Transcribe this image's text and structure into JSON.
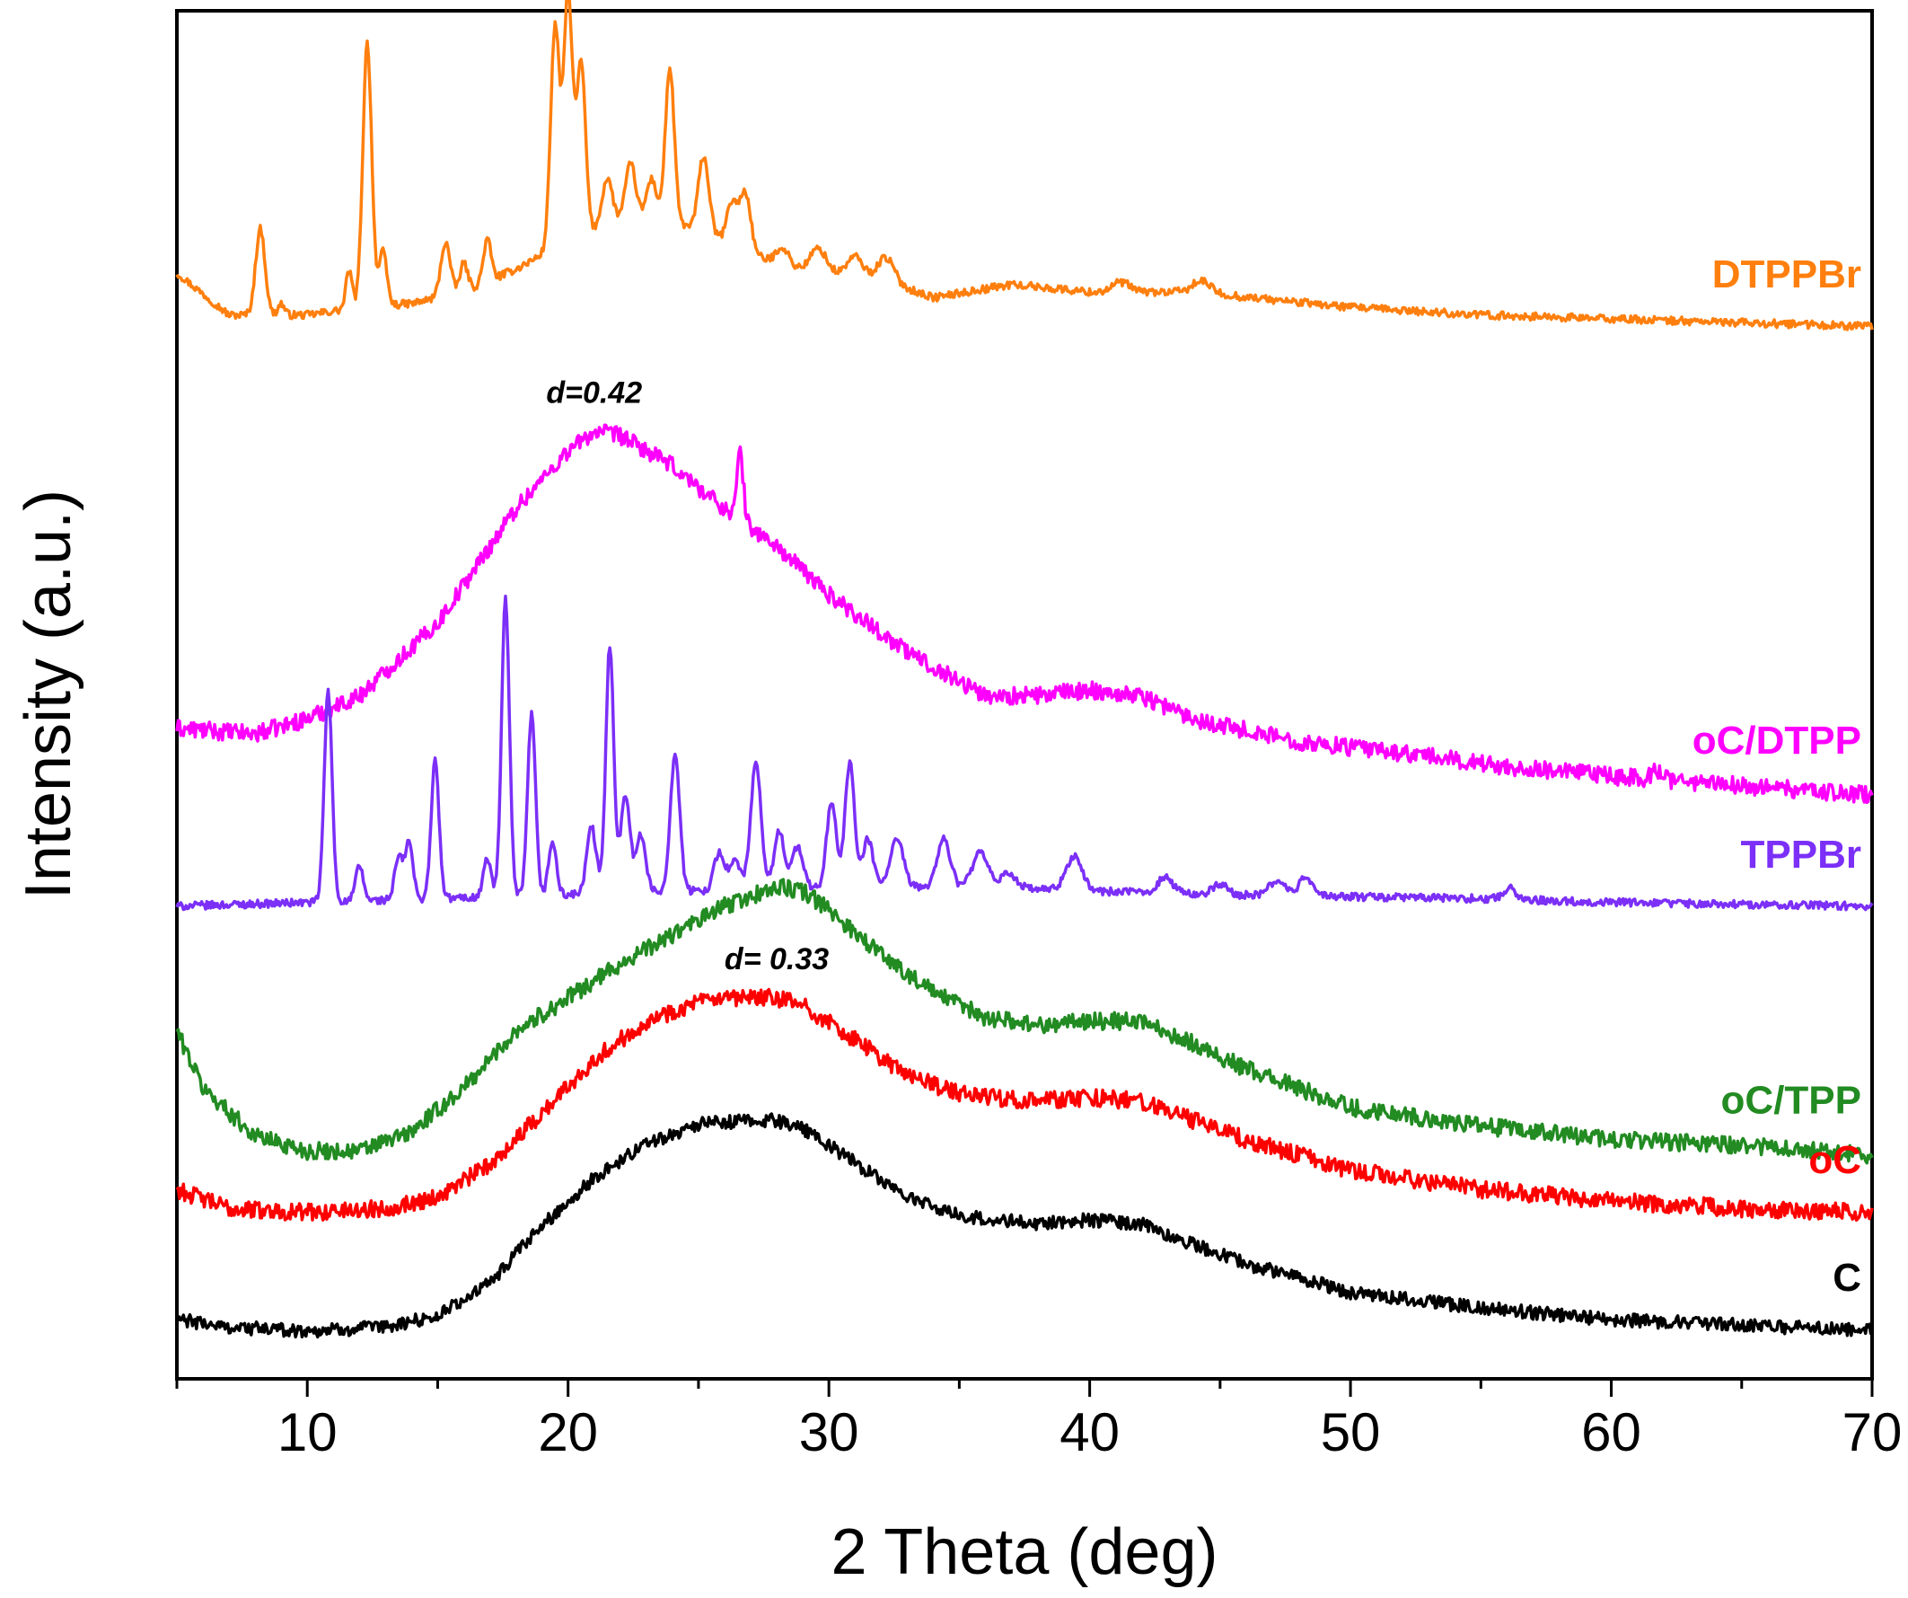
{
  "chart_data": {
    "type": "line",
    "title": "",
    "xlabel": "2 Theta (deg)",
    "ylabel": "Intensity (a.u.)",
    "xlim": [
      5,
      70
    ],
    "xticks": [
      10,
      20,
      30,
      40,
      50,
      60,
      70
    ],
    "xtick_labels": [
      "10",
      "20",
      "30",
      "40",
      "50",
      "60",
      "70"
    ],
    "yticks_shown": false,
    "grid": false,
    "legend": "inline labels at right end of each curve",
    "annotations": [
      {
        "text": "d=0.42",
        "x": 21.0,
        "series": "oC/DTPP"
      },
      {
        "text": "d= 0.33",
        "x": 28.0,
        "series": "oC"
      }
    ],
    "series": [
      {
        "name": "DTPPBr",
        "color": "#ff7f0e",
        "offset": 5.25,
        "noise": 0.02,
        "baseline": [
          [
            5,
            0.28
          ],
          [
            7,
            0.06
          ],
          [
            10,
            0.06
          ],
          [
            12,
            0.1
          ],
          [
            14,
            0.12
          ],
          [
            16,
            0.18
          ],
          [
            18,
            0.3
          ],
          [
            20,
            0.45
          ],
          [
            22,
            0.55
          ],
          [
            24,
            0.55
          ],
          [
            26,
            0.45
          ],
          [
            28,
            0.32
          ],
          [
            30,
            0.28
          ],
          [
            32,
            0.25
          ],
          [
            34,
            0.15
          ],
          [
            37,
            0.22
          ],
          [
            40,
            0.18
          ],
          [
            44,
            0.18
          ],
          [
            50,
            0.1
          ],
          [
            55,
            0.06
          ],
          [
            60,
            0.04
          ],
          [
            70,
            0.0
          ]
        ],
        "peaks": [
          [
            8.2,
            0.45,
            0.18
          ],
          [
            9.0,
            0.06,
            0.12
          ],
          [
            11.6,
            0.2,
            0.12
          ],
          [
            12.3,
            1.38,
            0.17
          ],
          [
            12.9,
            0.28,
            0.15
          ],
          [
            15.3,
            0.28,
            0.18
          ],
          [
            16.0,
            0.15,
            0.15
          ],
          [
            16.9,
            0.22,
            0.15
          ],
          [
            19.5,
            1.15,
            0.17
          ],
          [
            20.0,
            1.28,
            0.17
          ],
          [
            20.5,
            0.9,
            0.17
          ],
          [
            21.5,
            0.25,
            0.2
          ],
          [
            22.4,
            0.3,
            0.2
          ],
          [
            23.2,
            0.22,
            0.2
          ],
          [
            23.9,
            0.8,
            0.17
          ],
          [
            25.2,
            0.4,
            0.2
          ],
          [
            26.3,
            0.22,
            0.2
          ],
          [
            26.8,
            0.3,
            0.2
          ],
          [
            28.2,
            0.1,
            0.25
          ],
          [
            29.6,
            0.12,
            0.3
          ],
          [
            31.0,
            0.1,
            0.3
          ],
          [
            32.2,
            0.12,
            0.3
          ],
          [
            41.2,
            0.05,
            0.35
          ],
          [
            44.3,
            0.06,
            0.35
          ]
        ]
      },
      {
        "name": "oC/DTPP",
        "color": "#ff00ff",
        "offset": 2.9,
        "noise": 0.045,
        "baseline": [
          [
            5,
            0.25
          ],
          [
            8,
            0.22
          ],
          [
            10,
            0.3
          ],
          [
            12,
            0.42
          ],
          [
            15,
            0.8
          ],
          [
            18,
            1.4
          ],
          [
            20,
            1.7
          ],
          [
            21,
            1.8
          ],
          [
            22,
            1.78
          ],
          [
            24,
            1.62
          ],
          [
            26,
            1.4
          ],
          [
            28,
            1.2
          ],
          [
            30,
            0.95
          ],
          [
            33,
            0.65
          ],
          [
            36,
            0.42
          ],
          [
            38,
            0.42
          ],
          [
            40,
            0.45
          ],
          [
            42,
            0.42
          ],
          [
            44,
            0.3
          ],
          [
            48,
            0.18
          ],
          [
            52,
            0.12
          ],
          [
            56,
            0.05
          ],
          [
            60,
            0.0
          ],
          [
            65,
            -0.05
          ],
          [
            70,
            -0.1
          ]
        ],
        "peaks": [
          [
            26.6,
            0.35,
            0.12
          ],
          [
            61.8,
            0.05,
            0.2
          ]
        ]
      },
      {
        "name": "TPPBr",
        "color": "#7b2ff7",
        "offset": 2.22,
        "noise": 0.02,
        "baseline": [
          [
            5,
            0.0
          ],
          [
            10,
            0.02
          ],
          [
            15,
            0.04
          ],
          [
            20,
            0.06
          ],
          [
            25,
            0.08
          ],
          [
            30,
            0.1
          ],
          [
            35,
            0.1
          ],
          [
            40,
            0.08
          ],
          [
            45,
            0.06
          ],
          [
            50,
            0.05
          ],
          [
            55,
            0.04
          ],
          [
            60,
            0.02
          ],
          [
            70,
            0.0
          ]
        ],
        "peaks": [
          [
            10.8,
            1.1,
            0.15
          ],
          [
            12.0,
            0.18,
            0.15
          ],
          [
            13.5,
            0.22,
            0.15
          ],
          [
            13.9,
            0.3,
            0.15
          ],
          [
            14.9,
            0.72,
            0.15
          ],
          [
            16.9,
            0.2,
            0.15
          ],
          [
            17.6,
            1.55,
            0.15
          ],
          [
            18.6,
            0.95,
            0.15
          ],
          [
            19.4,
            0.28,
            0.15
          ],
          [
            20.9,
            0.35,
            0.18
          ],
          [
            21.6,
            1.3,
            0.15
          ],
          [
            22.2,
            0.52,
            0.18
          ],
          [
            22.8,
            0.3,
            0.18
          ],
          [
            24.1,
            0.72,
            0.18
          ],
          [
            25.8,
            0.2,
            0.2
          ],
          [
            26.4,
            0.15,
            0.2
          ],
          [
            27.2,
            0.65,
            0.2
          ],
          [
            28.1,
            0.3,
            0.2
          ],
          [
            28.8,
            0.22,
            0.2
          ],
          [
            30.1,
            0.45,
            0.18
          ],
          [
            30.8,
            0.65,
            0.18
          ],
          [
            31.5,
            0.25,
            0.2
          ],
          [
            32.6,
            0.25,
            0.25
          ],
          [
            34.4,
            0.25,
            0.25
          ],
          [
            35.8,
            0.18,
            0.3
          ],
          [
            36.9,
            0.08,
            0.3
          ],
          [
            39.4,
            0.18,
            0.3
          ],
          [
            42.9,
            0.08,
            0.3
          ],
          [
            45.0,
            0.05,
            0.3
          ],
          [
            47.2,
            0.08,
            0.3
          ],
          [
            48.3,
            0.1,
            0.25
          ],
          [
            56.1,
            0.06,
            0.25
          ]
        ]
      },
      {
        "name": "oC/TPP",
        "color": "#228b22",
        "offset": 0.92,
        "noise": 0.045,
        "baseline": [
          [
            5,
            0.65
          ],
          [
            6,
            0.35
          ],
          [
            8,
            0.1
          ],
          [
            10,
            0.02
          ],
          [
            12,
            0.02
          ],
          [
            14,
            0.12
          ],
          [
            16,
            0.35
          ],
          [
            18,
            0.65
          ],
          [
            20,
            0.82
          ],
          [
            22,
            1.0
          ],
          [
            24,
            1.15
          ],
          [
            26,
            1.3
          ],
          [
            28,
            1.4
          ],
          [
            29,
            1.38
          ],
          [
            30,
            1.28
          ],
          [
            32,
            1.05
          ],
          [
            34,
            0.85
          ],
          [
            36,
            0.72
          ],
          [
            38,
            0.68
          ],
          [
            40,
            0.7
          ],
          [
            42,
            0.7
          ],
          [
            44,
            0.58
          ],
          [
            46,
            0.45
          ],
          [
            48,
            0.35
          ],
          [
            50,
            0.25
          ],
          [
            55,
            0.15
          ],
          [
            60,
            0.08
          ],
          [
            65,
            0.05
          ],
          [
            70,
            0.0
          ]
        ],
        "peaks": []
      },
      {
        "name": "oC",
        "color": "#ff0000",
        "offset": 0.62,
        "noise": 0.045,
        "baseline": [
          [
            5,
            0.12
          ],
          [
            7,
            0.02
          ],
          [
            10,
            0.0
          ],
          [
            13,
            0.02
          ],
          [
            15,
            0.08
          ],
          [
            17,
            0.25
          ],
          [
            19,
            0.52
          ],
          [
            21,
            0.8
          ],
          [
            23,
            1.0
          ],
          [
            25,
            1.1
          ],
          [
            27,
            1.12
          ],
          [
            28,
            1.12
          ],
          [
            29,
            1.08
          ],
          [
            31,
            0.9
          ],
          [
            33,
            0.72
          ],
          [
            35,
            0.62
          ],
          [
            38,
            0.58
          ],
          [
            40,
            0.6
          ],
          [
            42,
            0.58
          ],
          [
            44,
            0.48
          ],
          [
            46,
            0.38
          ],
          [
            48,
            0.3
          ],
          [
            50,
            0.22
          ],
          [
            55,
            0.12
          ],
          [
            60,
            0.06
          ],
          [
            65,
            0.02
          ],
          [
            70,
            0.0
          ]
        ],
        "peaks": []
      },
      {
        "name": "C",
        "color": "#000000",
        "offset": 0.0,
        "noise": 0.035,
        "baseline": [
          [
            5,
            0.06
          ],
          [
            7,
            0.02
          ],
          [
            10,
            0.0
          ],
          [
            13,
            0.02
          ],
          [
            15,
            0.08
          ],
          [
            17,
            0.25
          ],
          [
            19,
            0.55
          ],
          [
            21,
            0.8
          ],
          [
            23,
            0.98
          ],
          [
            25,
            1.08
          ],
          [
            27,
            1.1
          ],
          [
            28,
            1.1
          ],
          [
            29,
            1.06
          ],
          [
            31,
            0.88
          ],
          [
            33,
            0.7
          ],
          [
            35,
            0.6
          ],
          [
            38,
            0.56
          ],
          [
            40,
            0.58
          ],
          [
            42,
            0.56
          ],
          [
            44,
            0.45
          ],
          [
            46,
            0.35
          ],
          [
            48,
            0.28
          ],
          [
            50,
            0.2
          ],
          [
            55,
            0.12
          ],
          [
            60,
            0.06
          ],
          [
            65,
            0.03
          ],
          [
            70,
            0.0
          ]
        ],
        "peaks": []
      }
    ]
  }
}
